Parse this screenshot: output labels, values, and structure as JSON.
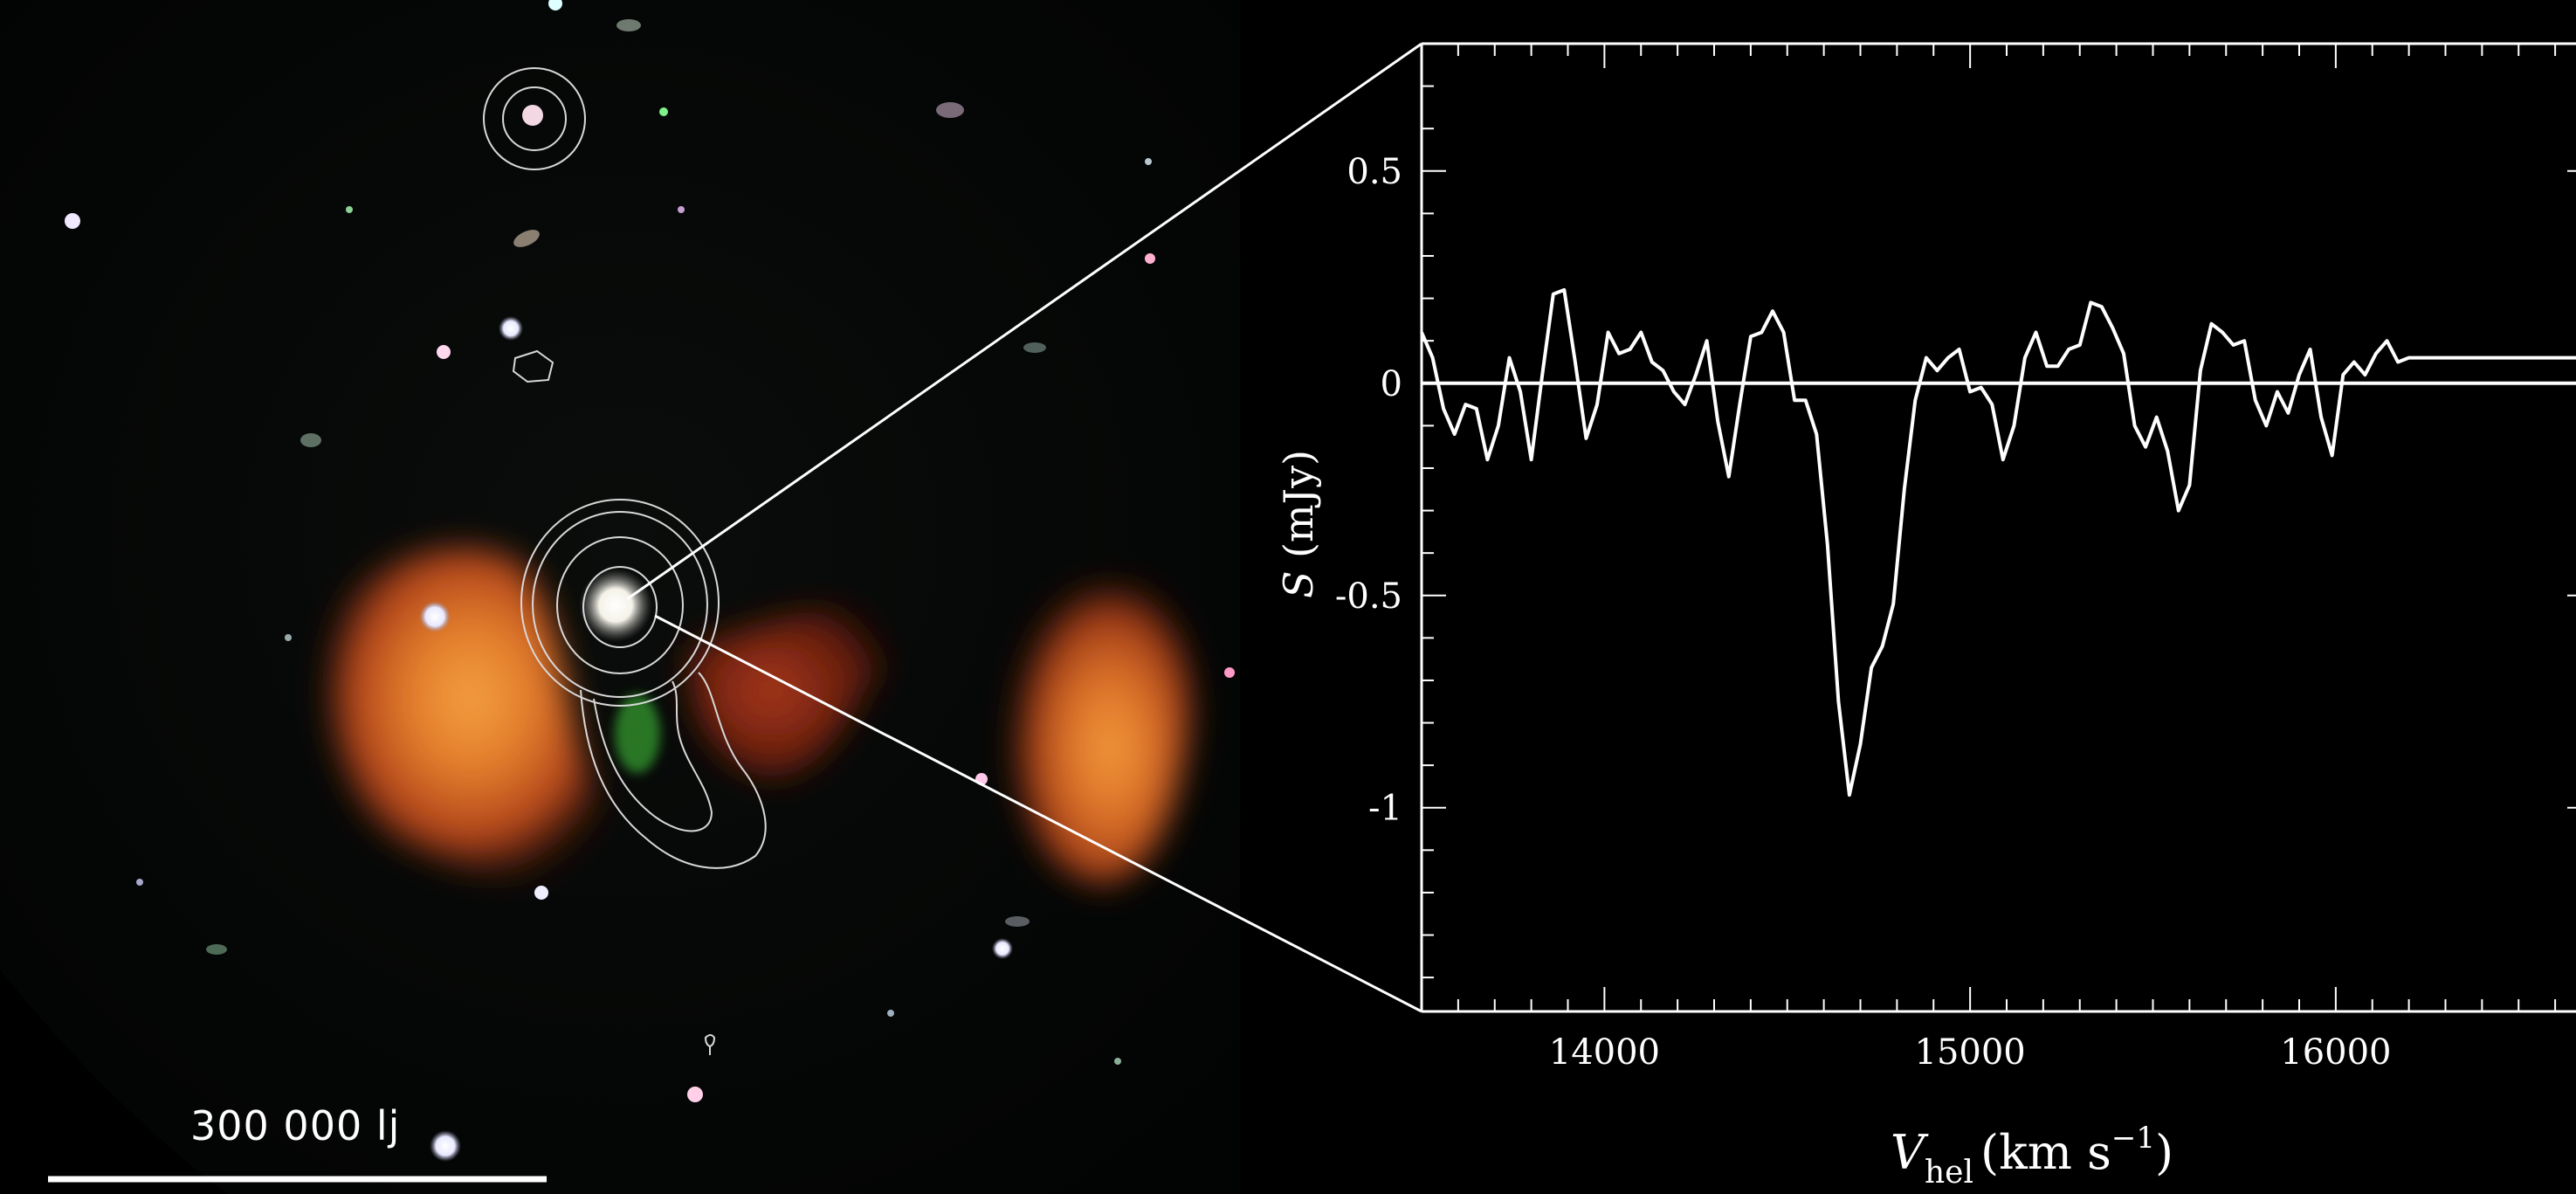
{
  "image": {
    "scale_bar_label": "300 000 lj",
    "colors": {
      "background": "#000000",
      "radio_lobes": "#e0641a",
      "radio_lobe_core": "#f08a30",
      "contours": "#d8d8d8",
      "plot_line": "#ffffff"
    }
  },
  "chart_data": {
    "type": "line",
    "title": "",
    "xlabel": "V_hel (km s^-1)",
    "xlabel_parts": {
      "symbol": "V",
      "subscript": "hel",
      "unit_prefix": "(km s",
      "superscript": "−1",
      "unit_suffix": ")"
    },
    "ylabel": "S (mJy)",
    "ylabel_parts": {
      "symbol": "S",
      "unit": " (mJy)"
    },
    "xlim": [
      13500,
      16700
    ],
    "ylim": [
      -1.48,
      0.8
    ],
    "x_ticks": [
      14000,
      15000,
      16000
    ],
    "x_tick_labels": [
      "14000",
      "15000",
      "16000"
    ],
    "y_ticks": [
      0.5,
      0,
      -0.5,
      -1
    ],
    "y_tick_labels": [
      "0.5",
      "0",
      "-0.5",
      "-1"
    ],
    "zero_line": 0,
    "grid": false,
    "series": [
      {
        "x": [
          13500,
          13530,
          13560,
          13590,
          13620,
          13650,
          13680,
          13710,
          13740,
          13770,
          13800,
          13830,
          13860,
          13890,
          13920,
          13950,
          13980,
          14010,
          14040,
          14070,
          14100,
          14130,
          14160,
          14190,
          14220,
          14250,
          14280,
          14310,
          14340,
          14370,
          14400,
          14430,
          14460,
          14490,
          14520,
          14550,
          14580,
          14610,
          14640,
          14670,
          14700,
          14730,
          14760,
          14790,
          14820,
          14850,
          14880,
          14910,
          14940,
          14970,
          15000,
          15030,
          15060,
          15090,
          15120,
          15150,
          15180,
          15210,
          15240,
          15270,
          15300,
          15330,
          15360,
          15390,
          15420,
          15450,
          15480,
          15510,
          15540,
          15570,
          15600,
          15630,
          15660,
          15690,
          15720,
          15750,
          15780,
          15810,
          15840,
          15870,
          15900,
          15930,
          15960,
          15990,
          16020,
          16050,
          16080,
          16110,
          16140,
          16170,
          16200,
          16230,
          16260,
          16290,
          16320,
          16350,
          16380,
          16410,
          16440,
          16470,
          16500,
          16530,
          16560,
          16590,
          16620,
          16650,
          16680,
          16700
        ],
        "y": [
          0.12,
          0.06,
          -0.06,
          -0.12,
          -0.05,
          -0.06,
          -0.18,
          -0.1,
          0.06,
          -0.02,
          -0.18,
          0.02,
          0.21,
          0.22,
          0.05,
          -0.13,
          -0.05,
          0.12,
          0.07,
          0.08,
          0.12,
          0.05,
          0.03,
          -0.02,
          -0.05,
          0.02,
          0.1,
          -0.09,
          -0.22,
          -0.05,
          0.11,
          0.12,
          0.17,
          0.12,
          -0.04,
          -0.04,
          -0.12,
          -0.38,
          -0.75,
          -0.97,
          -0.85,
          -0.67,
          -0.62,
          -0.52,
          -0.25,
          -0.04,
          0.06,
          0.03,
          0.06,
          0.08,
          -0.02,
          -0.01,
          -0.05,
          -0.18,
          -0.1,
          0.06,
          0.12,
          0.04,
          0.04,
          0.08,
          0.09,
          0.19,
          0.18,
          0.13,
          0.07,
          -0.1,
          -0.15,
          -0.08,
          -0.16,
          -0.3,
          -0.24,
          0.03,
          0.14,
          0.12,
          0.09,
          0.1,
          -0.04,
          -0.1,
          -0.02,
          -0.07,
          0.02,
          0.08,
          -0.08,
          -0.17,
          0.02,
          0.05,
          0.02,
          0.07,
          0.1,
          0.05,
          0.06,
          0.06,
          0.06,
          0.06,
          0.06,
          0.06,
          0.06,
          0.06,
          0.06,
          0.06,
          0.06,
          0.06,
          0.06,
          0.06,
          0.06,
          0.06,
          0.06,
          0.06
        ]
      }
    ]
  }
}
